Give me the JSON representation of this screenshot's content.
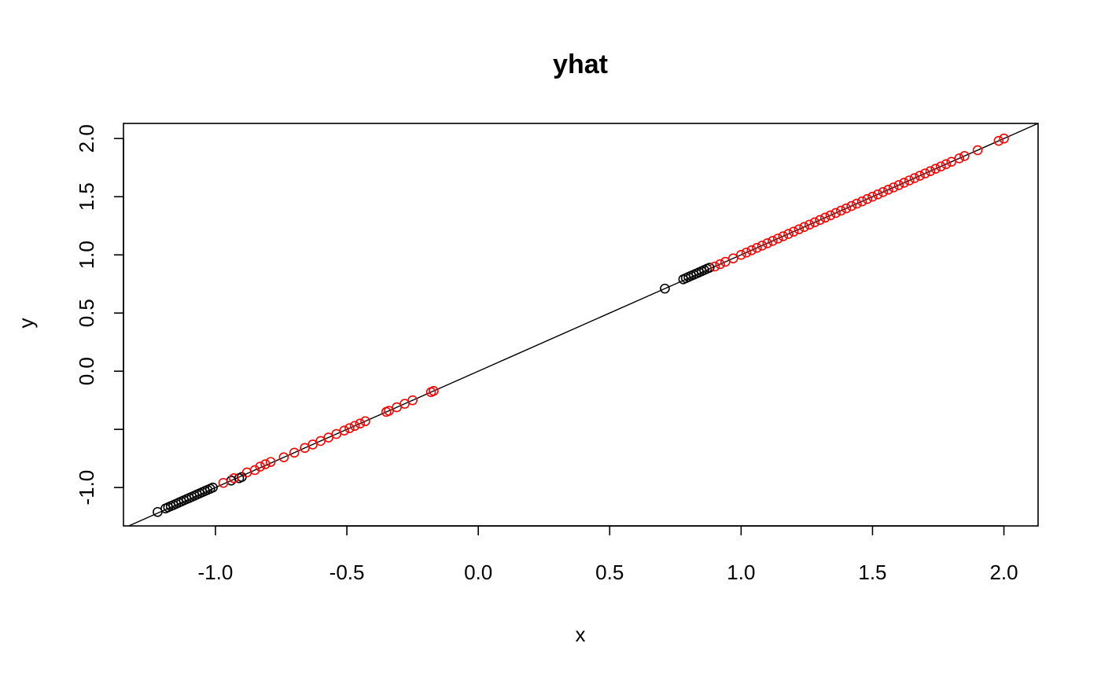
{
  "chart_data": {
    "type": "scatter",
    "title": "yhat",
    "xlabel": "x",
    "ylabel": "y",
    "xlim": [
      -1.35,
      2.13
    ],
    "ylim": [
      -1.33,
      2.13
    ],
    "x_ticks": [
      {
        "value": -1.0,
        "label": "-1.0"
      },
      {
        "value": -0.5,
        "label": "-0.5"
      },
      {
        "value": 0.0,
        "label": "0.0"
      },
      {
        "value": 0.5,
        "label": "0.5"
      },
      {
        "value": 1.0,
        "label": "1.0"
      },
      {
        "value": 1.5,
        "label": "1.5"
      },
      {
        "value": 2.0,
        "label": "2.0"
      }
    ],
    "y_ticks": [
      {
        "value": -1.0,
        "label": "-1.0"
      },
      {
        "value": -0.5,
        "label": ""
      },
      {
        "value": 0.0,
        "label": "0.0"
      },
      {
        "value": 0.5,
        "label": "0.5"
      },
      {
        "value": 1.0,
        "label": "1.0"
      },
      {
        "value": 1.5,
        "label": "1.5"
      },
      {
        "value": 2.0,
        "label": "2.0"
      }
    ],
    "reference_line": {
      "intercept": 0,
      "slope": 1,
      "color": "#000000"
    },
    "grid": false,
    "legend": "none",
    "series": [
      {
        "color": "#000000",
        "x": [
          -1.22,
          -1.19,
          -1.18,
          -1.17,
          -1.16,
          -1.15,
          -1.14,
          -1.13,
          -1.12,
          -1.11,
          -1.1,
          -1.09,
          -1.08,
          -1.07,
          -1.06,
          -1.05,
          -1.04,
          -1.03,
          -1.02,
          -1.01,
          -0.94,
          -0.91,
          -0.9,
          0.71,
          0.78,
          0.79,
          0.8,
          0.81,
          0.82,
          0.83,
          0.84,
          0.85,
          0.86,
          0.87,
          0.88
        ],
        "y": [
          -1.21,
          -1.18,
          -1.17,
          -1.16,
          -1.15,
          -1.14,
          -1.13,
          -1.12,
          -1.11,
          -1.1,
          -1.09,
          -1.08,
          -1.07,
          -1.06,
          -1.05,
          -1.04,
          -1.03,
          -1.02,
          -1.01,
          -1.0,
          -0.94,
          -0.92,
          -0.91,
          0.71,
          0.79,
          0.8,
          0.81,
          0.82,
          0.83,
          0.84,
          0.85,
          0.86,
          0.87,
          0.88,
          0.89
        ]
      },
      {
        "color": "#ff0000",
        "x": [
          -0.97,
          -0.93,
          -0.88,
          -0.85,
          -0.83,
          -0.81,
          -0.79,
          -0.74,
          -0.7,
          -0.66,
          -0.63,
          -0.6,
          -0.57,
          -0.54,
          -0.51,
          -0.49,
          -0.47,
          -0.45,
          -0.43,
          -0.35,
          -0.34,
          -0.31,
          -0.28,
          -0.25,
          -0.18,
          -0.17,
          0.9,
          0.92,
          0.94,
          0.97,
          1.0,
          1.02,
          1.04,
          1.06,
          1.08,
          1.1,
          1.12,
          1.14,
          1.16,
          1.18,
          1.2,
          1.22,
          1.24,
          1.26,
          1.28,
          1.3,
          1.32,
          1.34,
          1.36,
          1.38,
          1.4,
          1.42,
          1.44,
          1.46,
          1.48,
          1.5,
          1.52,
          1.54,
          1.56,
          1.58,
          1.6,
          1.62,
          1.64,
          1.66,
          1.68,
          1.7,
          1.72,
          1.74,
          1.76,
          1.78,
          1.8,
          1.83,
          1.85,
          1.9,
          1.98,
          2.0
        ],
        "y": [
          -0.96,
          -0.92,
          -0.87,
          -0.85,
          -0.82,
          -0.8,
          -0.78,
          -0.74,
          -0.7,
          -0.66,
          -0.63,
          -0.6,
          -0.57,
          -0.54,
          -0.51,
          -0.49,
          -0.47,
          -0.45,
          -0.43,
          -0.35,
          -0.34,
          -0.31,
          -0.28,
          -0.25,
          -0.18,
          -0.17,
          0.9,
          0.92,
          0.94,
          0.97,
          1.0,
          1.02,
          1.04,
          1.06,
          1.08,
          1.1,
          1.12,
          1.14,
          1.16,
          1.18,
          1.2,
          1.22,
          1.24,
          1.26,
          1.28,
          1.3,
          1.32,
          1.34,
          1.36,
          1.38,
          1.4,
          1.42,
          1.44,
          1.46,
          1.48,
          1.5,
          1.52,
          1.54,
          1.56,
          1.58,
          1.6,
          1.62,
          1.64,
          1.66,
          1.68,
          1.7,
          1.72,
          1.74,
          1.76,
          1.78,
          1.8,
          1.83,
          1.85,
          1.9,
          1.98,
          2.0
        ]
      }
    ]
  }
}
